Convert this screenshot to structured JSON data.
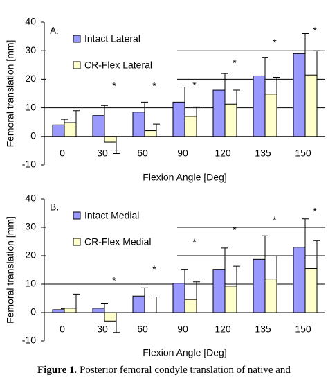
{
  "chart_data": [
    {
      "type": "bar",
      "panel_label": "A.",
      "ylabel": "Femoral translation [mm]",
      "xlabel": "Flexion Angle [Deg]",
      "categories": [
        "0",
        "30",
        "60",
        "90",
        "120",
        "135",
        "150"
      ],
      "series": [
        {
          "name": "Intact Lateral",
          "color": "#9999ff",
          "values": [
            4,
            7.3,
            8.5,
            12,
            16.2,
            21.2,
            29
          ],
          "errors": [
            2,
            3.5,
            3.5,
            5.3,
            5.8,
            6.5,
            7
          ]
        },
        {
          "name": "CR-Flex Lateral",
          "color": "#ffffcc",
          "values": [
            4.8,
            -2,
            2,
            7,
            11.3,
            14.8,
            21.5
          ],
          "errors": [
            4.2,
            4,
            2.3,
            3.3,
            4.9,
            5.9,
            8.5
          ]
        }
      ],
      "ylim": [
        -10,
        40
      ],
      "yticks": [
        -10,
        0,
        10,
        20,
        30,
        40
      ],
      "grid": true,
      "annotations": [
        "*",
        "*",
        "*",
        "*",
        "*",
        "*"
      ]
    },
    {
      "type": "bar",
      "panel_label": "B.",
      "ylabel": "Femoral translation [mm]",
      "xlabel": "Flexion Angle [Deg]",
      "categories": [
        "0",
        "30",
        "60",
        "90",
        "120",
        "135",
        "150"
      ],
      "series": [
        {
          "name": "Intact Medial",
          "color": "#9999ff",
          "values": [
            1,
            1.5,
            5.8,
            10.3,
            15.2,
            18.7,
            23
          ],
          "errors": [
            0.3,
            1.8,
            2.9,
            4.9,
            7.5,
            8.3,
            10
          ]
        },
        {
          "name": "CR-Flex Medial",
          "color": "#ffffcc",
          "values": [
            1.5,
            -3,
            0,
            4.6,
            9.3,
            11.8,
            15.5
          ],
          "errors": [
            5,
            4,
            5.5,
            6.2,
            7,
            8.2,
            9.8
          ]
        }
      ],
      "ylim": [
        -10,
        40
      ],
      "yticks": [
        -10,
        0,
        10,
        20,
        30,
        40
      ],
      "grid": true,
      "annotations": [
        "*",
        "*",
        "*",
        "*",
        "*",
        "*"
      ]
    }
  ],
  "caption": {
    "label": "Figure 1",
    "text": ". Posterior femoral condyle translation of native and"
  }
}
